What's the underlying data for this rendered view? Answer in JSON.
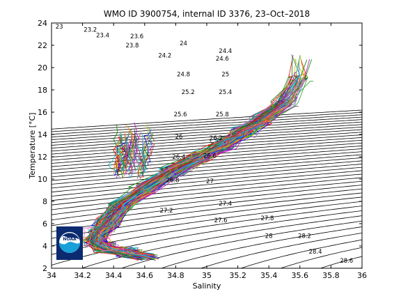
{
  "chart_data": {
    "type": "line",
    "title": "WMO ID 3900754, internal ID 3376, 23–Oct–2018",
    "xlabel": "Salinity",
    "ylabel": "Temperature [°C]",
    "xlim": [
      34,
      36
    ],
    "ylim": [
      2,
      24
    ],
    "xticks": [
      "34",
      "34.2",
      "34.4",
      "34.6",
      "34.8",
      "35",
      "35.2",
      "35.4",
      "35.6",
      "35.8",
      "36"
    ],
    "yticks": [
      "2",
      "4",
      "6",
      "8",
      "10",
      "12",
      "14",
      "16",
      "18",
      "20",
      "22",
      "24"
    ],
    "grid": false,
    "logo": "NOAA",
    "density_contours": [
      {
        "label": "23",
        "x": 34.05,
        "y": 23.7
      },
      {
        "label": "23.2",
        "x": 34.25,
        "y": 23.4
      },
      {
        "label": "23.4",
        "x": 34.33,
        "y": 22.9
      },
      {
        "label": "23.6",
        "x": 34.55,
        "y": 22.8
      },
      {
        "label": "23.8",
        "x": 34.52,
        "y": 22.0
      },
      {
        "label": "24",
        "x": 34.85,
        "y": 22.2
      },
      {
        "label": "24.2",
        "x": 34.73,
        "y": 21.1
      },
      {
        "label": "24.4",
        "x": 35.12,
        "y": 21.5
      },
      {
        "label": "24.6",
        "x": 35.1,
        "y": 20.8
      },
      {
        "label": "24.8",
        "x": 34.85,
        "y": 19.4
      },
      {
        "label": "25",
        "x": 35.12,
        "y": 19.4
      },
      {
        "label": "25.2",
        "x": 34.88,
        "y": 17.8
      },
      {
        "label": "25.4",
        "x": 35.12,
        "y": 17.8
      },
      {
        "label": "25.6",
        "x": 34.83,
        "y": 15.8
      },
      {
        "label": "25.8",
        "x": 35.1,
        "y": 15.8
      },
      {
        "label": "26",
        "x": 34.82,
        "y": 13.8
      },
      {
        "label": "26.2",
        "x": 35.06,
        "y": 13.7
      },
      {
        "label": "26.4",
        "x": 34.82,
        "y": 12.0
      },
      {
        "label": "26.6",
        "x": 35.02,
        "y": 12.1
      },
      {
        "label": "26.8",
        "x": 34.78,
        "y": 9.9
      },
      {
        "label": "27",
        "x": 35.02,
        "y": 9.8
      },
      {
        "label": "27.2",
        "x": 34.74,
        "y": 7.2
      },
      {
        "label": "27.4",
        "x": 35.12,
        "y": 7.8
      },
      {
        "label": "27.6",
        "x": 35.09,
        "y": 6.3
      },
      {
        "label": "27.8",
        "x": 35.39,
        "y": 6.5
      },
      {
        "label": "28",
        "x": 35.4,
        "y": 4.9
      },
      {
        "label": "28.2",
        "x": 35.63,
        "y": 4.9
      },
      {
        "label": "28.4",
        "x": 35.7,
        "y": 3.5
      },
      {
        "label": "28.6",
        "x": 35.9,
        "y": 2.7
      }
    ],
    "profiles": {
      "count": 120,
      "envelope": [
        {
          "x": 34.62,
          "y": 3.0
        },
        {
          "x": 34.5,
          "y": 3.3
        },
        {
          "x": 34.35,
          "y": 3.7
        },
        {
          "x": 34.28,
          "y": 4.3
        },
        {
          "x": 34.3,
          "y": 5.0
        },
        {
          "x": 34.36,
          "y": 6.0
        },
        {
          "x": 34.45,
          "y": 7.5
        },
        {
          "x": 34.6,
          "y": 9.0
        },
        {
          "x": 34.78,
          "y": 10.6
        },
        {
          "x": 34.95,
          "y": 11.8
        },
        {
          "x": 35.1,
          "y": 12.9
        },
        {
          "x": 35.22,
          "y": 14.0
        },
        {
          "x": 35.35,
          "y": 15.2
        },
        {
          "x": 35.5,
          "y": 16.8
        },
        {
          "x": 35.6,
          "y": 19.0
        },
        {
          "x": 35.6,
          "y": 21.0
        }
      ],
      "fresh_cluster": {
        "x": [
          34.4,
          34.85
        ],
        "y": [
          10.0,
          16.0
        ]
      }
    }
  }
}
